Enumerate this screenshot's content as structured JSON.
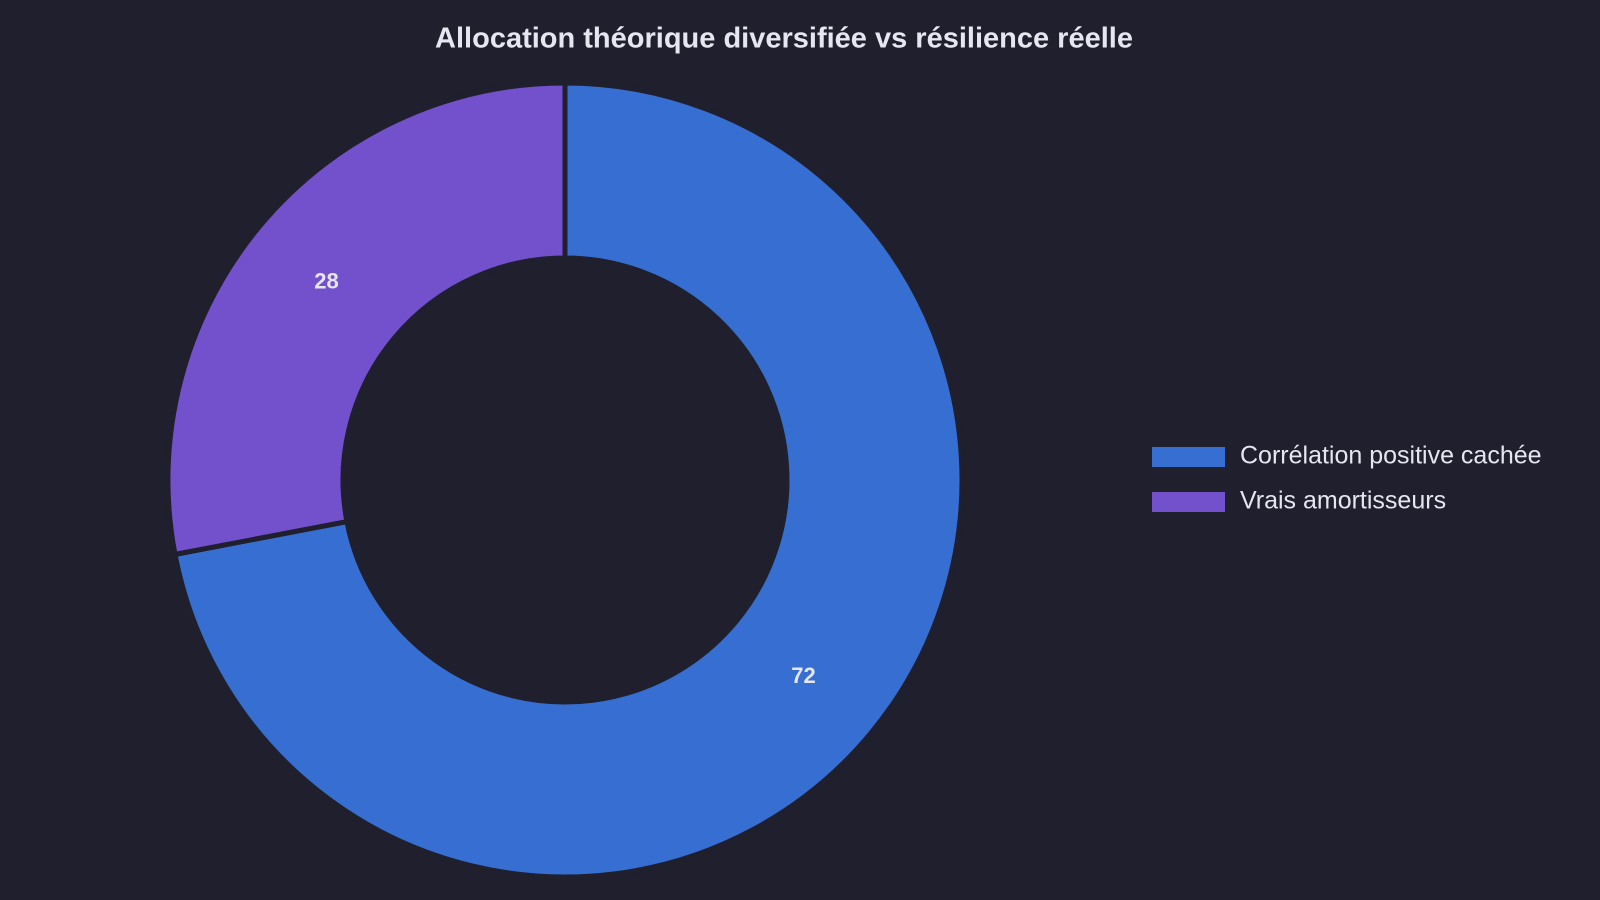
{
  "chart_data": {
    "type": "donut",
    "title": "Allocation théorique diversifiée vs résilience réelle",
    "categories": [
      "Corrélation positive cachée",
      "Vrais amortisseurs"
    ],
    "values": [
      72,
      28
    ],
    "colors": [
      "#366fd1",
      "#7350cc"
    ],
    "legend": "right"
  }
}
